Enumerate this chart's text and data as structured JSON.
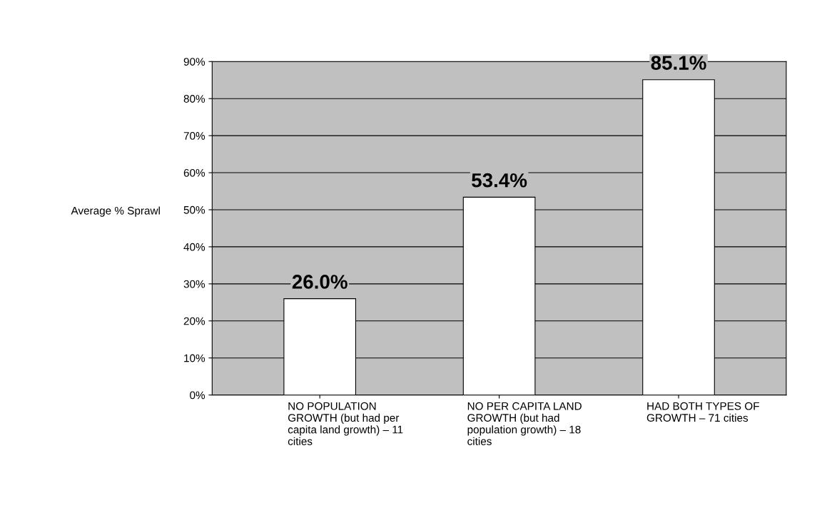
{
  "chart_data": {
    "type": "bar",
    "ylabel": "Average % Sprawl",
    "categories": [
      "NO POPULATION\nGROWTH (but had per\ncapita land growth) – 11\ncities",
      "NO PER CAPITA LAND\nGROWTH (but had\npopulation growth) – 18\ncities",
      "HAD BOTH TYPES OF\nGROWTH – 71 cities"
    ],
    "values": [
      26.0,
      53.4,
      85.1
    ],
    "value_labels": [
      "26.0%",
      "53.4%",
      "85.1%"
    ],
    "color": "#ffffff",
    "ylim": [
      0,
      90
    ],
    "yticks": [
      {
        "value": 0,
        "label": "0%"
      },
      {
        "value": 10,
        "label": "10%"
      },
      {
        "value": 20,
        "label": "20%"
      },
      {
        "value": 30,
        "label": "30%"
      },
      {
        "value": 40,
        "label": "40%"
      },
      {
        "value": 50,
        "label": "50%"
      },
      {
        "value": 60,
        "label": "60%"
      },
      {
        "value": 70,
        "label": "70%"
      },
      {
        "value": 80,
        "label": "80%"
      },
      {
        "value": 90,
        "label": "90%"
      }
    ],
    "grid": "y",
    "legend": false
  }
}
